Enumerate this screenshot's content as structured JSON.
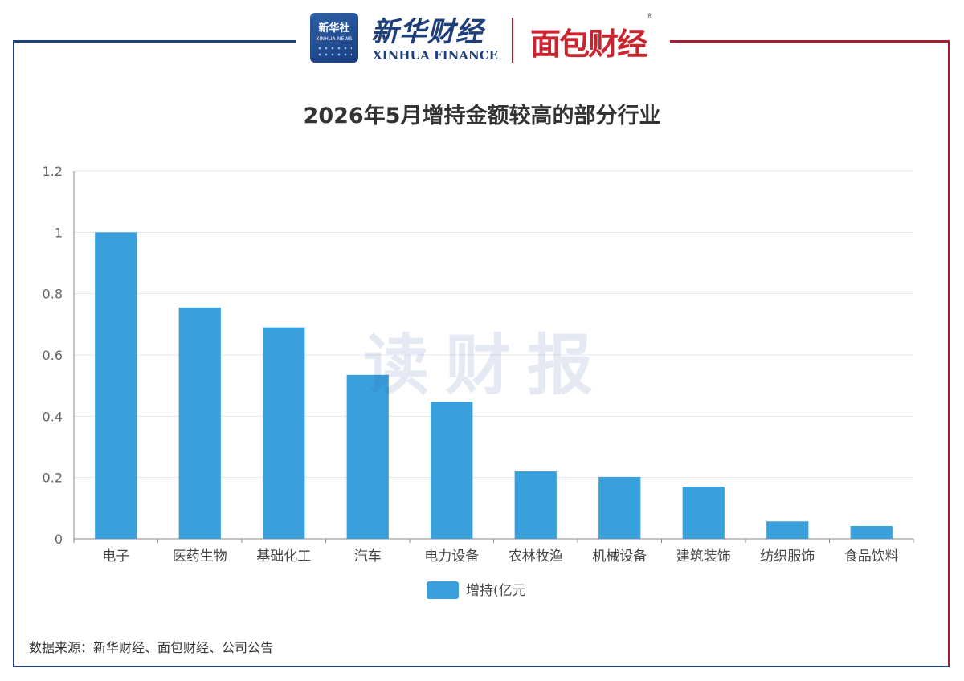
{
  "header": {
    "xinhua_badge_cn": "新华社",
    "xinhua_badge_en": "XINHUA NEWS",
    "xinhua_finance_cn": "新华财经",
    "xinhua_finance_en": "XINHUA FINANCE",
    "mianbao_logo": "面包财经",
    "registered_mark": "®"
  },
  "watermark": "读财报",
  "source": "数据来源：新华财经、面包财经、公司公告",
  "colors": {
    "bar": "#3aa0dc",
    "frame_blue": "#1f3f7a",
    "frame_red": "#a51e2e",
    "grid": "#e3e7f1",
    "axis": "#666666"
  },
  "chart_data": {
    "type": "bar",
    "title": "2026年5月增持金额较高的部分行业",
    "xlabel": "",
    "ylabel": "",
    "categories": [
      "电子",
      "医药生物",
      "基础化工",
      "汽车",
      "电力设备",
      "农林牧渔",
      "机械设备",
      "建筑装饰",
      "纺织服饰",
      "食品饮料"
    ],
    "series": [
      {
        "name": "增持(亿元",
        "values": [
          1.0,
          0.755,
          0.69,
          0.535,
          0.447,
          0.22,
          0.202,
          0.17,
          0.057,
          0.042
        ]
      }
    ],
    "ylim": [
      0,
      1.2
    ],
    "yticks": [
      "0",
      "0.2",
      "0.4",
      "0.6",
      "0.8",
      "1",
      "1.2"
    ],
    "grid": true,
    "legend": "bottom-center"
  }
}
